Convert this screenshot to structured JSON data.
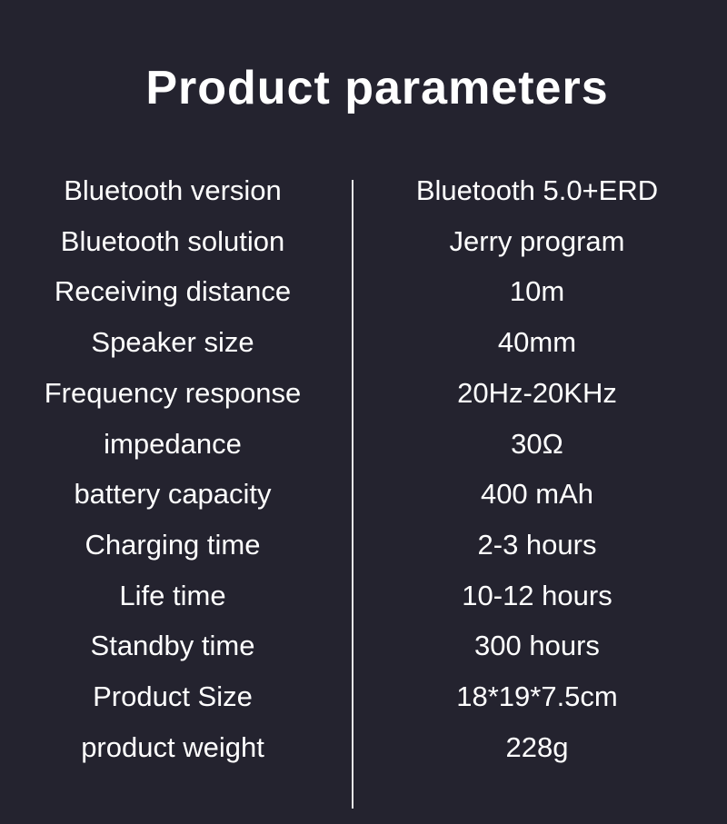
{
  "title": "Product parameters",
  "rows": [
    {
      "label": "Bluetooth version",
      "value": "Bluetooth 5.0+ERD"
    },
    {
      "label": "Bluetooth solution",
      "value": "Jerry program"
    },
    {
      "label": "Receiving distance",
      "value": "10m"
    },
    {
      "label": "Speaker size",
      "value": "40mm"
    },
    {
      "label": "Frequency response",
      "value": "20Hz-20KHz"
    },
    {
      "label": "impedance",
      "value": "30Ω"
    },
    {
      "label": "battery capacity",
      "value": "400 mAh"
    },
    {
      "label": "Charging time",
      "value": "2-3 hours"
    },
    {
      "label": "Life time",
      "value": "10-12 hours"
    },
    {
      "label": "Standby time",
      "value": "300 hours"
    },
    {
      "label": "Product Size",
      "value": "18*19*7.5cm"
    },
    {
      "label": "product weight",
      "value": "228g"
    }
  ]
}
